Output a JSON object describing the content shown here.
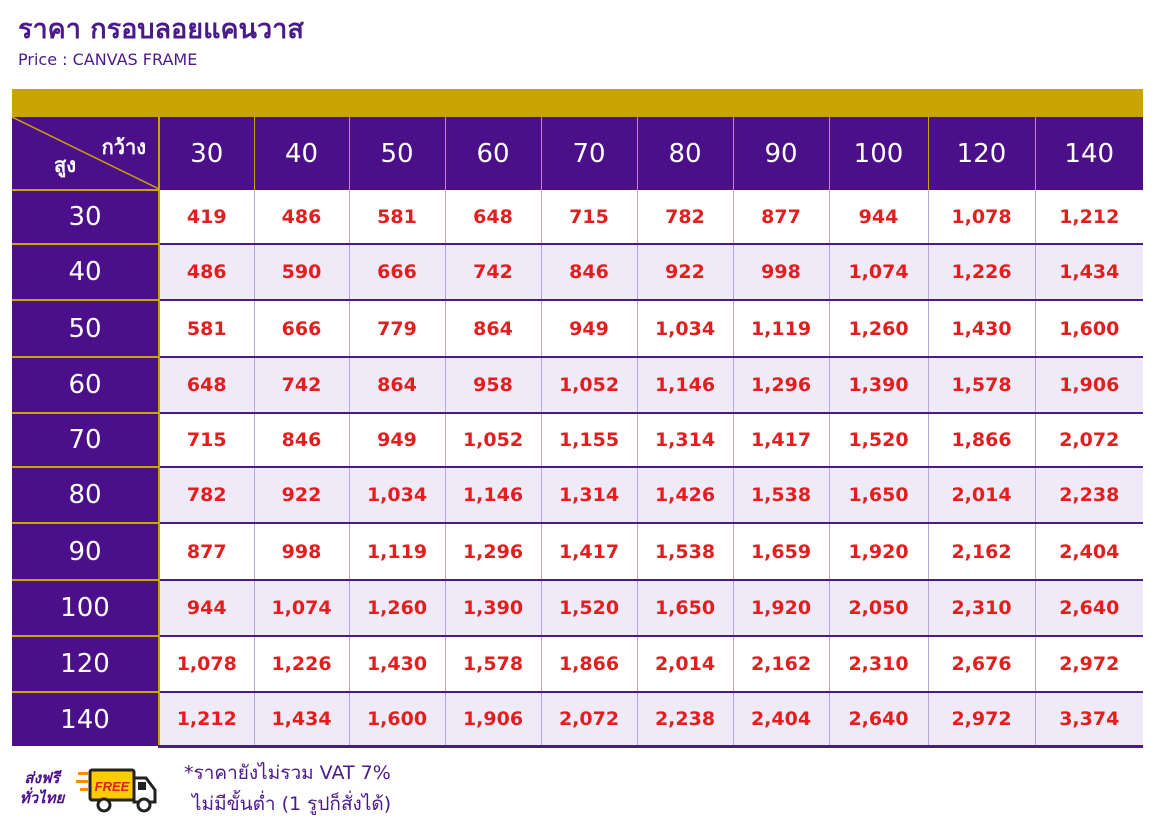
{
  "header": {
    "title": "ราคา กรอบลอยแคนวาส",
    "subtitle": "Price : CANVAS FRAME"
  },
  "table": {
    "corner_width_label": "กว้าง",
    "corner_height_label": "สูง",
    "columns": [
      "30",
      "40",
      "50",
      "60",
      "70",
      "80",
      "90",
      "100",
      "120",
      "140"
    ],
    "rows": [
      {
        "height": "30",
        "prices": [
          "419",
          "486",
          "581",
          "648",
          "715",
          "782",
          "877",
          "944",
          "1,078",
          "1,212"
        ]
      },
      {
        "height": "40",
        "prices": [
          "486",
          "590",
          "666",
          "742",
          "846",
          "922",
          "998",
          "1,074",
          "1,226",
          "1,434"
        ]
      },
      {
        "height": "50",
        "prices": [
          "581",
          "666",
          "779",
          "864",
          "949",
          "1,034",
          "1,119",
          "1,260",
          "1,430",
          "1,600"
        ]
      },
      {
        "height": "60",
        "prices": [
          "648",
          "742",
          "864",
          "958",
          "1,052",
          "1,146",
          "1,296",
          "1,390",
          "1,578",
          "1,906"
        ]
      },
      {
        "height": "70",
        "prices": [
          "715",
          "846",
          "949",
          "1,052",
          "1,155",
          "1,314",
          "1,417",
          "1,520",
          "1,866",
          "2,072"
        ]
      },
      {
        "height": "80",
        "prices": [
          "782",
          "922",
          "1,034",
          "1,146",
          "1,314",
          "1,426",
          "1,538",
          "1,650",
          "2,014",
          "2,238"
        ]
      },
      {
        "height": "90",
        "prices": [
          "877",
          "998",
          "1,119",
          "1,296",
          "1,417",
          "1,538",
          "1,659",
          "1,920",
          "2,162",
          "2,404"
        ]
      },
      {
        "height": "100",
        "prices": [
          "944",
          "1,074",
          "1,260",
          "1,390",
          "1,520",
          "1,650",
          "1,920",
          "2,050",
          "2,310",
          "2,640"
        ]
      },
      {
        "height": "120",
        "prices": [
          "1,078",
          "1,226",
          "1,430",
          "1,578",
          "1,866",
          "2,014",
          "2,162",
          "2,310",
          "2,676",
          "2,972"
        ]
      },
      {
        "height": "140",
        "prices": [
          "1,212",
          "1,434",
          "1,600",
          "1,906",
          "2,072",
          "2,238",
          "2,404",
          "2,640",
          "2,972",
          "3,374"
        ]
      }
    ]
  },
  "footer": {
    "shipping_line1": "ส่งฟรี",
    "shipping_line2": "ทั่วไทย",
    "truck_label": "FREE",
    "note_vat": "*ราคายังไม่รวม VAT 7%",
    "note_min": "ไม่มีขั้นต่ำ (1 รูปก็สั่งได้)"
  },
  "colors": {
    "brand_purple": "#4b0f8a",
    "accent_gold": "#c8a400",
    "price_red": "#e41e1e",
    "stripe": "#efeaf8"
  },
  "icons": {
    "truck": "delivery-truck-icon"
  }
}
